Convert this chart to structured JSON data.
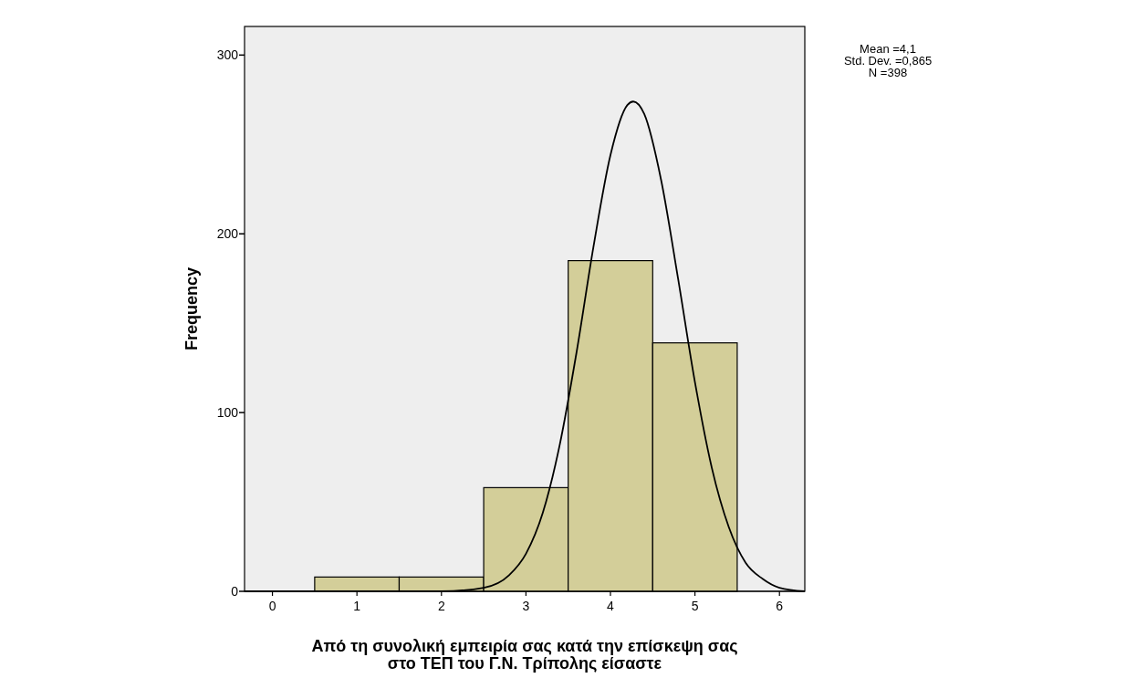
{
  "chart_data": {
    "type": "histogram",
    "xlabel": "Από τη συνολική εμπειρία σας κατά την επίσκεψη σας\nστο ΤΕΠ του Γ.Ν. Τρίπολης είσαστε",
    "ylabel": "Frequency",
    "bins": [
      0.5,
      1.5,
      2.5,
      3.5,
      4.5,
      5.5
    ],
    "values": [
      8,
      8,
      58,
      185,
      139
    ],
    "color": "#d3ce99",
    "series": [
      {
        "type": "line",
        "color": "#000000",
        "x": [
          -0.33,
          2.0,
          2.5,
          2.8,
          3.0,
          3.2,
          3.4,
          3.6,
          3.8,
          4.0,
          4.2,
          4.27,
          4.4,
          4.6,
          4.8,
          5.0,
          5.2,
          5.4,
          5.6,
          5.8,
          6.0,
          6.3
        ],
        "values": [
          0,
          0,
          2,
          9,
          21,
          44,
          82,
          134,
          193,
          244,
          272,
          274,
          267,
          230,
          175,
          117,
          69,
          36,
          16,
          7,
          2,
          0
        ]
      }
    ],
    "xlim": [
      -0.33,
      6.3
    ],
    "xticks": [
      0,
      1,
      2,
      3,
      4,
      5,
      6
    ],
    "ylim": [
      0,
      316
    ],
    "yticks": [
      0,
      100,
      200,
      300
    ],
    "annotations": [
      "Mean =4,1",
      "Std. Dev. =0,865",
      "N =398"
    ]
  }
}
